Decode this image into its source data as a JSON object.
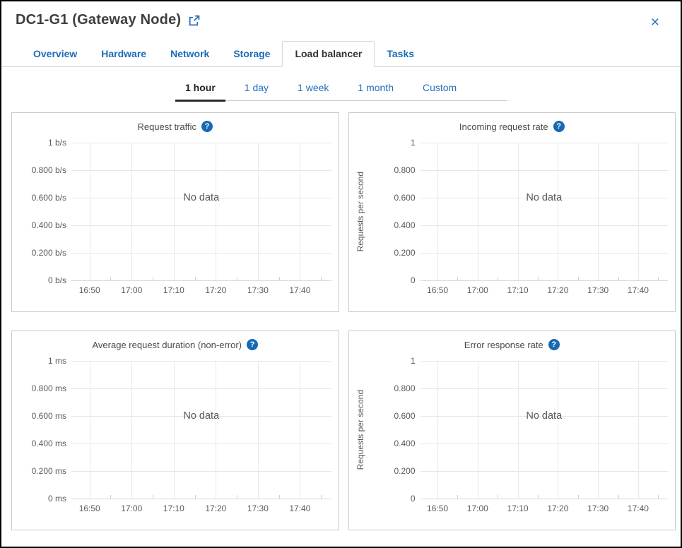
{
  "header": {
    "title": "DC1-G1 (Gateway Node)"
  },
  "icons": {
    "close": "×",
    "help": "?",
    "external_link": "open-in-new-window"
  },
  "colors": {
    "link_blue": "#1a6db8",
    "help_icon_bg": "#1769b3",
    "active_underline": "#2b2b2b",
    "panel_border": "#c9c9c9",
    "gridline": "#e6e6e6"
  },
  "tabs": [
    {
      "label": "Overview",
      "active": false
    },
    {
      "label": "Hardware",
      "active": false
    },
    {
      "label": "Network",
      "active": false
    },
    {
      "label": "Storage",
      "active": false
    },
    {
      "label": "Load balancer",
      "active": true
    },
    {
      "label": "Tasks",
      "active": false
    }
  ],
  "time_range": {
    "options": [
      {
        "label": "1 hour",
        "active": true
      },
      {
        "label": "1 day",
        "active": false
      },
      {
        "label": "1 week",
        "active": false
      },
      {
        "label": "1 month",
        "active": false
      },
      {
        "label": "Custom",
        "active": false
      }
    ]
  },
  "chart_data": [
    {
      "type": "line",
      "title": "Request traffic",
      "ylabel": "",
      "y_ticks": [
        "1 b/s",
        "0.800 b/s",
        "0.600 b/s",
        "0.400 b/s",
        "0.200 b/s",
        "0 b/s"
      ],
      "x_ticks": [
        "16:50",
        "17:00",
        "17:10",
        "17:20",
        "17:30",
        "17:40"
      ],
      "ylim": [
        0,
        1
      ],
      "series": [],
      "no_data_text": "No data",
      "grid": true,
      "legend": false
    },
    {
      "type": "line",
      "title": "Incoming request rate",
      "ylabel": "Requests per second",
      "y_ticks": [
        "1",
        "0.800",
        "0.600",
        "0.400",
        "0.200",
        "0"
      ],
      "x_ticks": [
        "16:50",
        "17:00",
        "17:10",
        "17:20",
        "17:30",
        "17:40"
      ],
      "ylim": [
        0,
        1
      ],
      "series": [],
      "no_data_text": "No data",
      "grid": true,
      "legend": false
    },
    {
      "type": "line",
      "title": "Average request duration (non-error)",
      "ylabel": "",
      "y_ticks": [
        "1 ms",
        "0.800 ms",
        "0.600 ms",
        "0.400 ms",
        "0.200 ms",
        "0 ms"
      ],
      "x_ticks": [
        "16:50",
        "17:00",
        "17:10",
        "17:20",
        "17:30",
        "17:40"
      ],
      "ylim": [
        0,
        1
      ],
      "series": [],
      "no_data_text": "No data",
      "grid": true,
      "legend": false
    },
    {
      "type": "line",
      "title": "Error response rate",
      "ylabel": "Requests per second",
      "y_ticks": [
        "1",
        "0.800",
        "0.600",
        "0.400",
        "0.200",
        "0"
      ],
      "x_ticks": [
        "16:50",
        "17:00",
        "17:10",
        "17:20",
        "17:30",
        "17:40"
      ],
      "ylim": [
        0,
        1
      ],
      "series": [],
      "no_data_text": "No data",
      "grid": true,
      "legend": false
    }
  ]
}
